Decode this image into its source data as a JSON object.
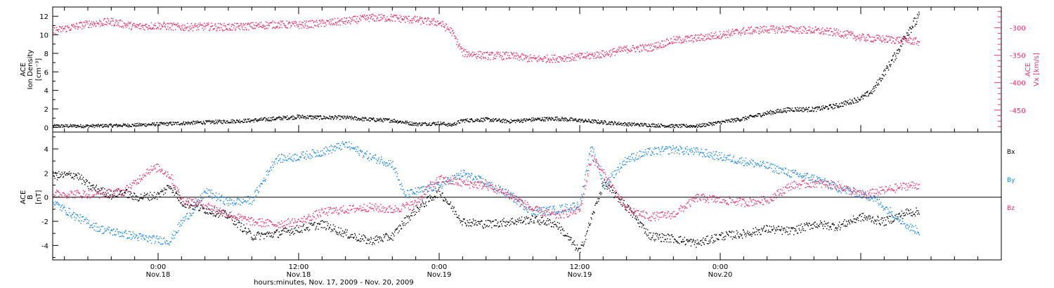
{
  "colors": {
    "black": "#000000",
    "red": "#e8336b",
    "blue": "#1e88e5"
  },
  "chart_data": [
    {
      "type": "scatter",
      "panel": "top",
      "x_unit": "hours since 2009-11-17 00:00",
      "xlim": [
        15,
        96
      ],
      "ylim": [
        -0.5,
        13
      ],
      "y2lim": [
        -490,
        -262
      ],
      "ylabel_lines": [
        "ACE",
        "Ion Density",
        "[cm⁻³]"
      ],
      "y2label_lines": [
        "ACE",
        "Vx [km/s]"
      ],
      "y_ticks": [
        0,
        2,
        4,
        6,
        8,
        10,
        12
      ],
      "y2_ticks": [
        -300,
        -350,
        -400,
        -450
      ],
      "series": [
        {
          "axis": "left",
          "color": "#000000",
          "points": [
            [
              15,
              0.2
            ],
            [
              18,
              0.2
            ],
            [
              22,
              0.3
            ],
            [
              24,
              0.4
            ],
            [
              26,
              0.5
            ],
            [
              28,
              0.6
            ],
            [
              30,
              0.7
            ],
            [
              32,
              0.8
            ],
            [
              34,
              1.0
            ],
            [
              36,
              1.2
            ],
            [
              38,
              1.1
            ],
            [
              40,
              1.1
            ],
            [
              42,
              0.9
            ],
            [
              44,
              0.8
            ],
            [
              46,
              0.4
            ],
            [
              48,
              0.5
            ],
            [
              49,
              0.3
            ],
            [
              50,
              0.8
            ],
            [
              52,
              0.9
            ],
            [
              54,
              0.7
            ],
            [
              56,
              0.9
            ],
            [
              58,
              1.0
            ],
            [
              60,
              0.8
            ],
            [
              62,
              0.6
            ],
            [
              64,
              0.4
            ],
            [
              66,
              0.3
            ],
            [
              68,
              0.2
            ],
            [
              70,
              0.2
            ],
            [
              72,
              0.6
            ],
            [
              74,
              1.0
            ],
            [
              76,
              1.6
            ],
            [
              78,
              2.0
            ],
            [
              80,
              2.0
            ],
            [
              82,
              2.4
            ],
            [
              84,
              3.2
            ],
            [
              85,
              4.0
            ],
            [
              86,
              6.0
            ],
            [
              87,
              8.0
            ],
            [
              88,
              10.5
            ],
            [
              89,
              12.0
            ]
          ]
        },
        {
          "axis": "right",
          "color": "#e8336b",
          "points": [
            [
              15,
              -305
            ],
            [
              18,
              -292
            ],
            [
              20,
              -288
            ],
            [
              22,
              -297
            ],
            [
              24,
              -295
            ],
            [
              26,
              -298
            ],
            [
              28,
              -297
            ],
            [
              30,
              -298
            ],
            [
              32,
              -296
            ],
            [
              34,
              -293
            ],
            [
              36,
              -294
            ],
            [
              38,
              -291
            ],
            [
              40,
              -287
            ],
            [
              42,
              -281
            ],
            [
              44,
              -281
            ],
            [
              46,
              -285
            ],
            [
              48,
              -290
            ],
            [
              49,
              -305
            ],
            [
              50,
              -345
            ],
            [
              52,
              -350
            ],
            [
              54,
              -350
            ],
            [
              56,
              -356
            ],
            [
              58,
              -355
            ],
            [
              60,
              -352
            ],
            [
              62,
              -347
            ],
            [
              64,
              -338
            ],
            [
              66,
              -335
            ],
            [
              68,
              -322
            ],
            [
              70,
              -318
            ],
            [
              72,
              -312
            ],
            [
              74,
              -305
            ],
            [
              76,
              -302
            ],
            [
              78,
              -302
            ],
            [
              80,
              -304
            ],
            [
              82,
              -308
            ],
            [
              84,
              -317
            ],
            [
              86,
              -320
            ],
            [
              88,
              -322
            ],
            [
              89,
              -325
            ]
          ]
        }
      ]
    },
    {
      "type": "scatter",
      "panel": "bottom",
      "x_unit": "hours since 2009-11-17 00:00",
      "xlim": [
        15,
        96
      ],
      "ylim": [
        -5.2,
        5.4
      ],
      "ylabel_lines": [
        "ACE",
        "B",
        "[nT]"
      ],
      "y_ticks": [
        4,
        2,
        0,
        -2,
        -4
      ],
      "legend": [
        "Bx",
        "By",
        "Bz"
      ],
      "series": [
        {
          "name": "Bx",
          "color": "#000000",
          "points": [
            [
              15,
              1.8
            ],
            [
              17,
              1.9
            ],
            [
              18,
              1.0
            ],
            [
              20,
              0.2
            ],
            [
              21,
              0.5
            ],
            [
              22,
              0.0
            ],
            [
              24,
              0.2
            ],
            [
              25,
              1.0
            ],
            [
              26,
              -0.4
            ],
            [
              28,
              -1.0
            ],
            [
              30,
              -1.5
            ],
            [
              32,
              -3.2
            ],
            [
              34,
              -3.0
            ],
            [
              36,
              -2.6
            ],
            [
              38,
              -2.2
            ],
            [
              40,
              -3.0
            ],
            [
              42,
              -3.6
            ],
            [
              44,
              -3.2
            ],
            [
              45,
              -2.0
            ],
            [
              46,
              -1.0
            ],
            [
              48,
              0.5
            ],
            [
              50,
              -2.0
            ],
            [
              52,
              -2.2
            ],
            [
              54,
              -2.0
            ],
            [
              56,
              -1.8
            ],
            [
              58,
              -2.2
            ],
            [
              60,
              -4.5
            ],
            [
              62,
              1.2
            ],
            [
              64,
              -0.8
            ],
            [
              66,
              -3.2
            ],
            [
              68,
              -3.4
            ],
            [
              70,
              -3.8
            ],
            [
              72,
              -3.2
            ],
            [
              74,
              -3.0
            ],
            [
              76,
              -2.6
            ],
            [
              78,
              -2.8
            ],
            [
              80,
              -2.2
            ],
            [
              82,
              -2.4
            ],
            [
              84,
              -1.6
            ],
            [
              86,
              -2.0
            ],
            [
              88,
              -1.2
            ],
            [
              89,
              -1.2
            ]
          ]
        },
        {
          "name": "By",
          "color": "#1e88e5",
          "points": [
            [
              15,
              -0.4
            ],
            [
              17,
              -1.6
            ],
            [
              19,
              -2.6
            ],
            [
              21,
              -3.0
            ],
            [
              23,
              -3.4
            ],
            [
              25,
              -3.6
            ],
            [
              26,
              -2.0
            ],
            [
              27,
              -1.0
            ],
            [
              28,
              0.5
            ],
            [
              30,
              -0.4
            ],
            [
              32,
              -0.2
            ],
            [
              34,
              3.2
            ],
            [
              36,
              3.4
            ],
            [
              38,
              3.8
            ],
            [
              40,
              4.4
            ],
            [
              42,
              3.4
            ],
            [
              44,
              2.8
            ],
            [
              45,
              0.2
            ],
            [
              46,
              0.5
            ],
            [
              48,
              1.0
            ],
            [
              50,
              2.0
            ],
            [
              52,
              1.2
            ],
            [
              54,
              0.2
            ],
            [
              56,
              -1.2
            ],
            [
              58,
              -1.0
            ],
            [
              60,
              -0.6
            ],
            [
              61,
              4.4
            ],
            [
              62,
              1.0
            ],
            [
              64,
              3.2
            ],
            [
              66,
              3.8
            ],
            [
              68,
              4.0
            ],
            [
              70,
              3.8
            ],
            [
              72,
              3.4
            ],
            [
              74,
              3.0
            ],
            [
              76,
              2.6
            ],
            [
              78,
              2.0
            ],
            [
              80,
              1.6
            ],
            [
              82,
              0.8
            ],
            [
              84,
              0.3
            ],
            [
              85,
              0.0
            ],
            [
              86,
              -0.8
            ],
            [
              87,
              -1.5
            ],
            [
              88,
              -2.4
            ],
            [
              89,
              -2.8
            ]
          ]
        },
        {
          "name": "Bz",
          "color": "#e8336b",
          "points": [
            [
              15,
              0.3
            ],
            [
              17,
              0.3
            ],
            [
              19,
              0.3
            ],
            [
              21,
              0.5
            ],
            [
              22,
              1.2
            ],
            [
              23,
              2.2
            ],
            [
              24,
              2.5
            ],
            [
              25,
              1.8
            ],
            [
              26,
              -0.2
            ],
            [
              28,
              -0.6
            ],
            [
              30,
              -1.4
            ],
            [
              32,
              -2.0
            ],
            [
              34,
              -2.2
            ],
            [
              36,
              -2.0
            ],
            [
              38,
              -1.2
            ],
            [
              40,
              -1.0
            ],
            [
              42,
              -0.8
            ],
            [
              44,
              -1.0
            ],
            [
              46,
              -0.5
            ],
            [
              47,
              0.8
            ],
            [
              48,
              1.5
            ],
            [
              50,
              1.2
            ],
            [
              52,
              1.0
            ],
            [
              54,
              0.2
            ],
            [
              56,
              -1.0
            ],
            [
              58,
              -1.5
            ],
            [
              60,
              -1.0
            ],
            [
              61,
              3.4
            ],
            [
              62,
              2.0
            ],
            [
              64,
              -1.0
            ],
            [
              66,
              -1.6
            ],
            [
              68,
              -1.4
            ],
            [
              70,
              0.0
            ],
            [
              72,
              -0.2
            ],
            [
              74,
              -0.4
            ],
            [
              76,
              -0.2
            ],
            [
              78,
              1.0
            ],
            [
              80,
              1.2
            ],
            [
              82,
              1.0
            ],
            [
              84,
              0.2
            ],
            [
              86,
              0.6
            ],
            [
              88,
              1.0
            ],
            [
              89,
              1.0
            ]
          ]
        }
      ]
    }
  ],
  "x_axis": {
    "ticks": [
      {
        "hour": 24,
        "time": "0:00",
        "day": "Nov.18"
      },
      {
        "hour": 36,
        "time": "12:00",
        "day": "Nov.18"
      },
      {
        "hour": 48,
        "time": "0:00",
        "day": "Nov.19"
      },
      {
        "hour": 60,
        "time": "12:00",
        "day": "Nov.19"
      },
      {
        "hour": 72,
        "time": "0:00",
        "day": "Nov.20"
      }
    ],
    "title": "hours:minutes, Nov. 17, 2009 - Nov. 20, 2009"
  }
}
